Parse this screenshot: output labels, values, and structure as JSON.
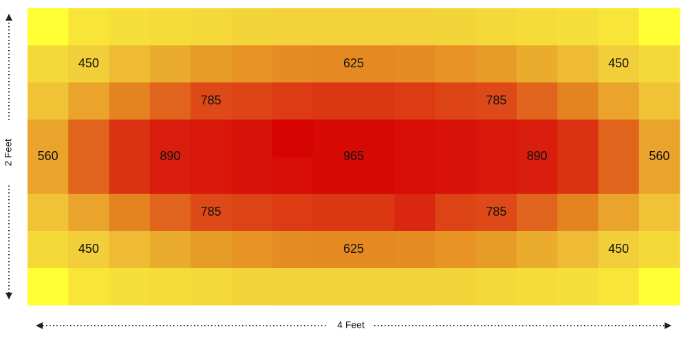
{
  "chart_data": {
    "type": "heatmap",
    "x_label": "4 Feet",
    "y_label": "2 Feet",
    "colorscale": [
      [
        300,
        "#ffff33"
      ],
      [
        450,
        "#f2cf3a"
      ],
      [
        625,
        "#e58a22"
      ],
      [
        785,
        "#dd4a18"
      ],
      [
        900,
        "#d91a0c"
      ],
      [
        1000,
        "#d40000"
      ]
    ],
    "z": [
      [
        300,
        380,
        400,
        410,
        420,
        430,
        440,
        440,
        440,
        440,
        430,
        420,
        410,
        400,
        380,
        300
      ],
      [
        420,
        450,
        500,
        540,
        580,
        600,
        620,
        625,
        625,
        620,
        600,
        580,
        540,
        500,
        450,
        420
      ],
      [
        480,
        560,
        640,
        720,
        785,
        800,
        820,
        830,
        830,
        820,
        800,
        785,
        720,
        640,
        560,
        480
      ],
      [
        560,
        720,
        840,
        890,
        910,
        930,
        990,
        965,
        965,
        950,
        930,
        910,
        890,
        840,
        720,
        560
      ],
      [
        560,
        720,
        840,
        890,
        910,
        930,
        950,
        965,
        965,
        950,
        930,
        910,
        890,
        840,
        720,
        560
      ],
      [
        480,
        560,
        640,
        720,
        785,
        800,
        820,
        830,
        830,
        870,
        800,
        785,
        720,
        640,
        560,
        480
      ],
      [
        420,
        450,
        500,
        540,
        580,
        600,
        620,
        625,
        625,
        620,
        600,
        580,
        540,
        500,
        450,
        420
      ],
      [
        300,
        380,
        400,
        410,
        420,
        430,
        440,
        440,
        440,
        440,
        430,
        420,
        410,
        400,
        380,
        300
      ]
    ],
    "annotations": [
      {
        "value": 450,
        "x": 1,
        "y": 1
      },
      {
        "value": 625,
        "x": 7.5,
        "y": 1
      },
      {
        "value": 450,
        "x": 14,
        "y": 1
      },
      {
        "value": 785,
        "x": 4,
        "y": 2
      },
      {
        "value": 785,
        "x": 11,
        "y": 2
      },
      {
        "value": 560,
        "x": 0,
        "y": 3.5
      },
      {
        "value": 890,
        "x": 3,
        "y": 3.5
      },
      {
        "value": 965,
        "x": 7.5,
        "y": 3.5
      },
      {
        "value": 890,
        "x": 12,
        "y": 3.5
      },
      {
        "value": 560,
        "x": 15,
        "y": 3.5
      },
      {
        "value": 785,
        "x": 4,
        "y": 5
      },
      {
        "value": 785,
        "x": 11,
        "y": 5
      },
      {
        "value": 450,
        "x": 1,
        "y": 6
      },
      {
        "value": 625,
        "x": 7.5,
        "y": 6
      },
      {
        "value": 450,
        "x": 14,
        "y": 6
      }
    ]
  }
}
